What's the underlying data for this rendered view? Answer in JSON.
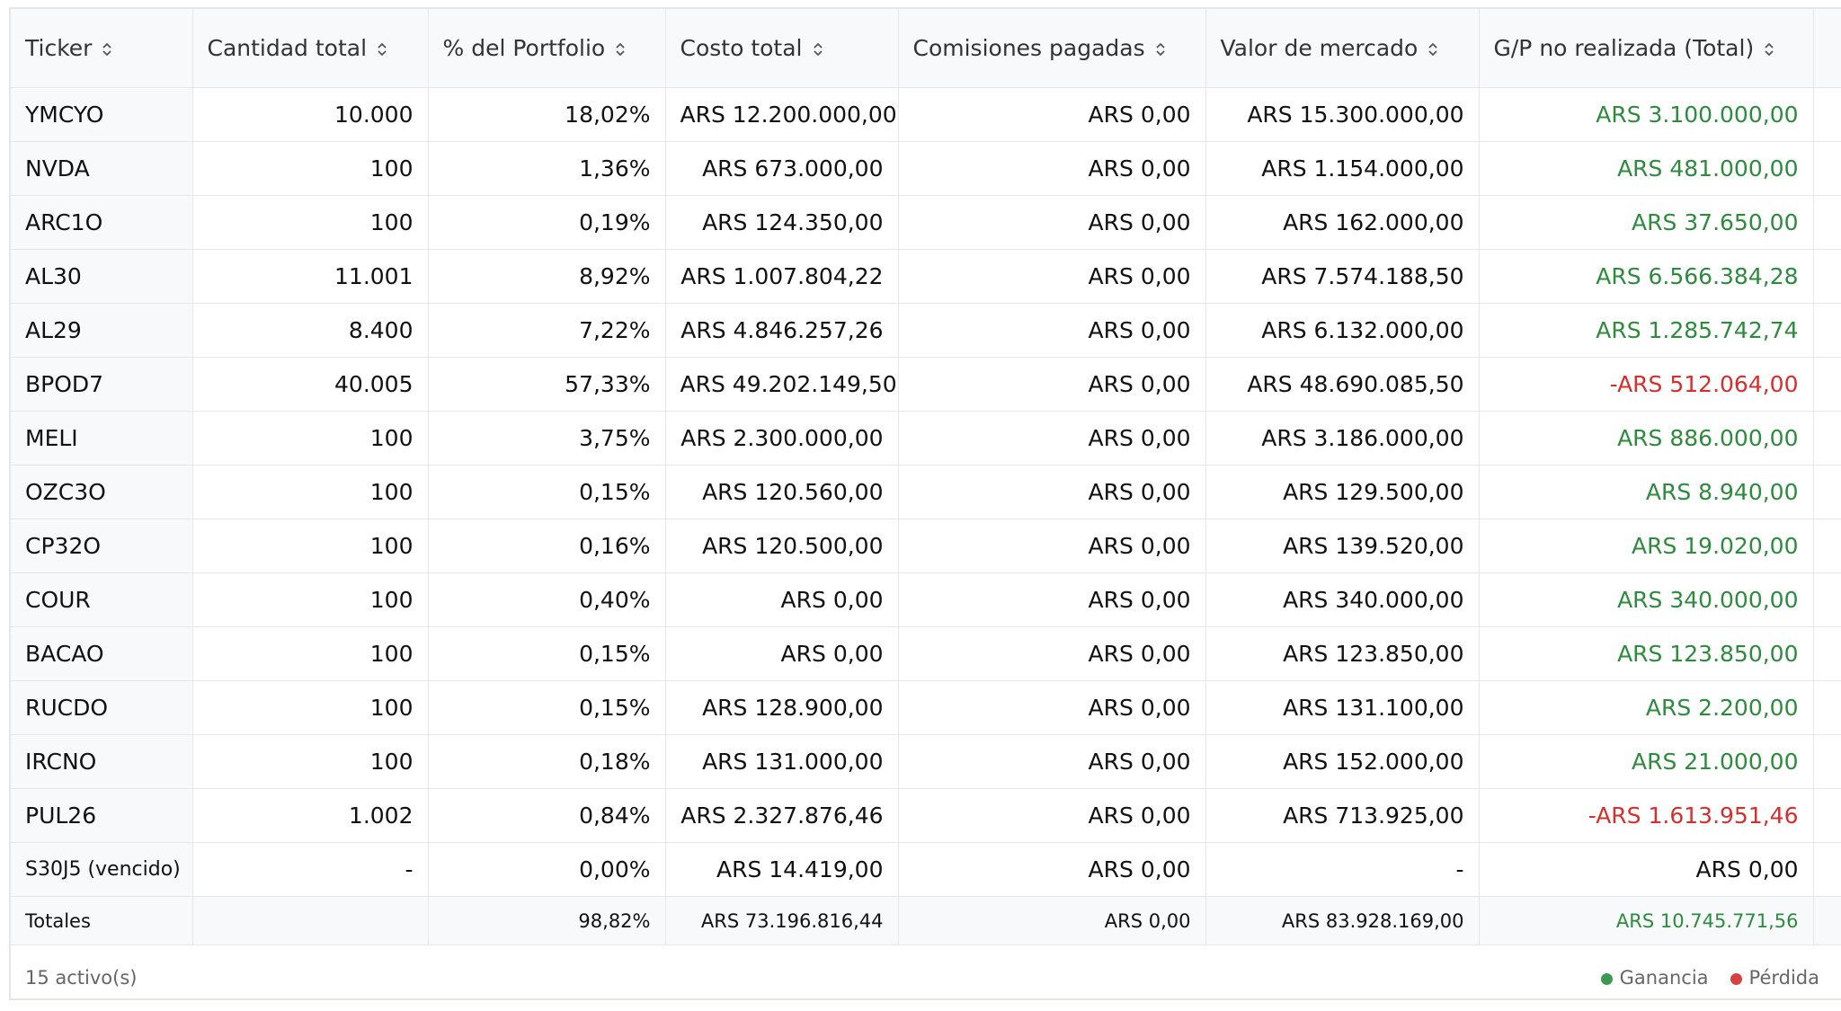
{
  "table": {
    "headers": [
      "Ticker",
      "Cantidad total",
      "% del Portfolio",
      "Costo total",
      "Comisiones pagadas",
      "Valor de mercado",
      "G/P no realizada (Total)"
    ],
    "rows": [
      [
        "YMCYO",
        "10.000",
        "18,02%",
        "ARS 12.200.000,00",
        "ARS 0,00",
        "ARS 15.300.000,00",
        "ARS 3.100.000,00"
      ],
      [
        "NVDA",
        "100",
        "1,36%",
        "ARS 673.000,00",
        "ARS 0,00",
        "ARS 1.154.000,00",
        "ARS 481.000,00"
      ],
      [
        "ARC1O",
        "100",
        "0,19%",
        "ARS 124.350,00",
        "ARS 0,00",
        "ARS 162.000,00",
        "ARS 37.650,00"
      ],
      [
        "AL30",
        "11.001",
        "8,92%",
        "ARS 1.007.804,22",
        "ARS 0,00",
        "ARS 7.574.188,50",
        "ARS 6.566.384,28"
      ],
      [
        "AL29",
        "8.400",
        "7,22%",
        "ARS 4.846.257,26",
        "ARS 0,00",
        "ARS 6.132.000,00",
        "ARS 1.285.742,74"
      ],
      [
        "BPOD7",
        "40.005",
        "57,33%",
        "ARS 49.202.149,50",
        "ARS 0,00",
        "ARS 48.690.085,50",
        "-ARS 512.064,00"
      ],
      [
        "MELI",
        "100",
        "3,75%",
        "ARS 2.300.000,00",
        "ARS 0,00",
        "ARS 3.186.000,00",
        "ARS 886.000,00"
      ],
      [
        "OZC3O",
        "100",
        "0,15%",
        "ARS 120.560,00",
        "ARS 0,00",
        "ARS 129.500,00",
        "ARS 8.940,00"
      ],
      [
        "CP32O",
        "100",
        "0,16%",
        "ARS 120.500,00",
        "ARS 0,00",
        "ARS 139.520,00",
        "ARS 19.020,00"
      ],
      [
        "COUR",
        "100",
        "0,40%",
        "ARS 0,00",
        "ARS 0,00",
        "ARS 340.000,00",
        "ARS 340.000,00"
      ],
      [
        "BACAO",
        "100",
        "0,15%",
        "ARS 0,00",
        "ARS 0,00",
        "ARS 123.850,00",
        "ARS 123.850,00"
      ],
      [
        "RUCDO",
        "100",
        "0,15%",
        "ARS 128.900,00",
        "ARS 0,00",
        "ARS 131.100,00",
        "ARS 2.200,00"
      ],
      [
        "IRCNO",
        "100",
        "0,18%",
        "ARS 131.000,00",
        "ARS 0,00",
        "ARS 152.000,00",
        "ARS 21.000,00"
      ],
      [
        "PUL26",
        "1.002",
        "0,84%",
        "ARS 2.327.876,46",
        "ARS 0,00",
        "ARS 713.925,00",
        "-ARS 1.613.951,46"
      ],
      [
        "S30J5 (vencido)",
        "-",
        "0,00%",
        "ARS 14.419,00",
        "ARS 0,00",
        "-",
        "ARS 0,00"
      ]
    ],
    "gp_colors": [
      "#2e8b3e",
      "#2e8b3e",
      "#2e8b3e",
      "#2e8b3e",
      "#2e8b3e",
      "#d3302f",
      "#2e8b3e",
      "#2e8b3e",
      "#2e8b3e",
      "#2e8b3e",
      "#2e8b3e",
      "#2e8b3e",
      "#2e8b3e",
      "#d3302f",
      "#111111"
    ],
    "totals": {
      "label": "Totales",
      "pct": "98,82%",
      "costo": "ARS 73.196.816,44",
      "comisiones": "ARS 0,00",
      "valor": "ARS 83.928.169,00",
      "gp": "ARS 10.745.771,56",
      "gp_color": "#2e8b3e"
    },
    "footer": {
      "count": "15 activo(s)",
      "legend": [
        {
          "label": "Ganancia",
          "color": "#3a9a4f"
        },
        {
          "label": "Pérdida",
          "color": "#d94040"
        }
      ]
    }
  }
}
